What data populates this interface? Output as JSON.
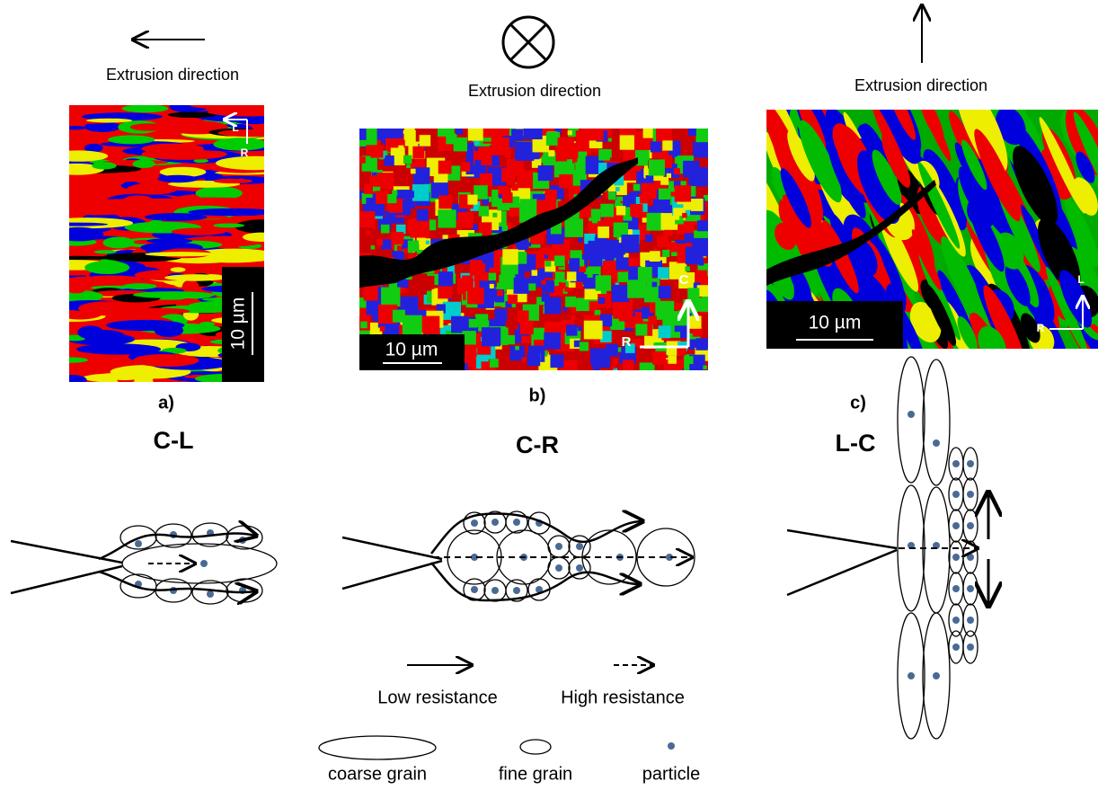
{
  "panels": [
    {
      "direction_label": "Extrusion direction",
      "axis_up": "L",
      "axis_side": "R",
      "scale_bar": "10 µm",
      "label": "a)",
      "orientation": "C-L"
    },
    {
      "direction_label": "Extrusion direction",
      "axis_up": "C",
      "axis_side": "R",
      "scale_bar": "10 µm",
      "label": "b)",
      "orientation": "C-R"
    },
    {
      "direction_label": "Extrusion direction",
      "axis_up": "L",
      "axis_side": "R",
      "scale_bar": "10 µm",
      "label": "c)",
      "orientation": "L-C"
    }
  ],
  "legend": {
    "low": "Low resistance",
    "high": "High resistance",
    "coarse": "coarse grain",
    "fine": "fine grain",
    "particle": "particle"
  }
}
